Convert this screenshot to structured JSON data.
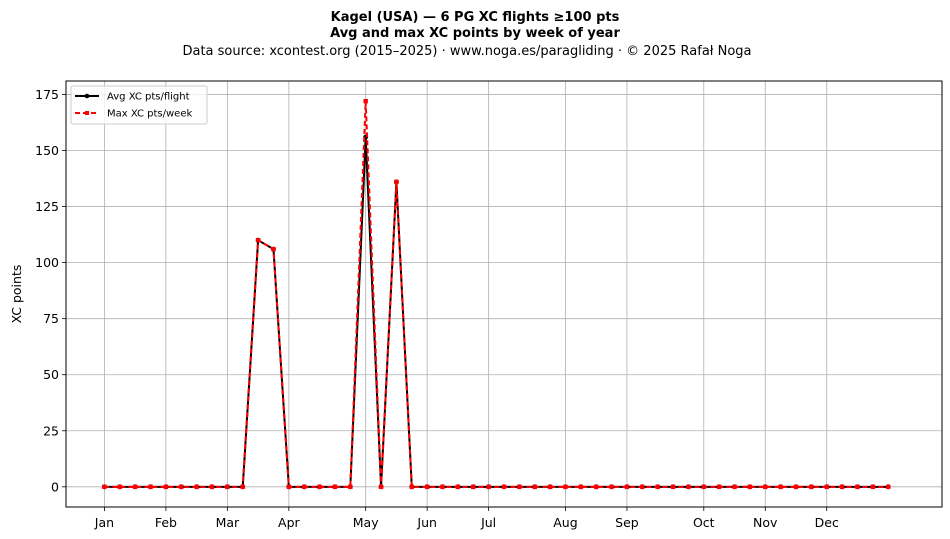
{
  "chart_data": {
    "type": "line",
    "title_line1": "Kagel (USA)  —  6 PG XC flights ≥100 pts",
    "title_line2": "Avg and max XC points by week of year",
    "subtitle": "Data source: xcontest.org (2015–2025)  ·  www.noga.es/paragliding  ·  © 2025 Rafał Noga",
    "ylabel": "XC points",
    "xlabel": "",
    "xlim": [
      -2.5,
      54.5
    ],
    "ylim": [
      -9,
      181
    ],
    "grid": true,
    "legend_position": "top-left",
    "x_ticks": [
      {
        "x": 0,
        "label": "Jan"
      },
      {
        "x": 4,
        "label": "Feb"
      },
      {
        "x": 8,
        "label": "Mar"
      },
      {
        "x": 12,
        "label": "Apr"
      },
      {
        "x": 17,
        "label": "May"
      },
      {
        "x": 21,
        "label": "Jun"
      },
      {
        "x": 25,
        "label": "Jul"
      },
      {
        "x": 30,
        "label": "Aug"
      },
      {
        "x": 34,
        "label": "Sep"
      },
      {
        "x": 39,
        "label": "Oct"
      },
      {
        "x": 43,
        "label": "Nov"
      },
      {
        "x": 47,
        "label": "Dec"
      }
    ],
    "y_ticks": [
      0,
      25,
      50,
      75,
      100,
      125,
      150,
      175
    ],
    "x": [
      0,
      1,
      2,
      3,
      4,
      5,
      6,
      7,
      8,
      9,
      10,
      11,
      12,
      13,
      14,
      15,
      16,
      17,
      18,
      19,
      20,
      21,
      22,
      23,
      24,
      25,
      26,
      27,
      28,
      29,
      30,
      31,
      32,
      33,
      34,
      35,
      36,
      37,
      38,
      39,
      40,
      41,
      42,
      43,
      44,
      45,
      46,
      47,
      48,
      49,
      50,
      51
    ],
    "series": [
      {
        "name": "Avg XC pts/flight",
        "color": "#000000",
        "style": "solid",
        "marker": "circle",
        "values": [
          0,
          0,
          0,
          0,
          0,
          0,
          0,
          0,
          0,
          0,
          110,
          106,
          0,
          0,
          0,
          0,
          0,
          156,
          0,
          136,
          0,
          0,
          0,
          0,
          0,
          0,
          0,
          0,
          0,
          0,
          0,
          0,
          0,
          0,
          0,
          0,
          0,
          0,
          0,
          0,
          0,
          0,
          0,
          0,
          0,
          0,
          0,
          0,
          0,
          0,
          0,
          0
        ]
      },
      {
        "name": "Max XC pts/week",
        "color": "#ff0000",
        "style": "dashed",
        "marker": "square",
        "values": [
          0,
          0,
          0,
          0,
          0,
          0,
          0,
          0,
          0,
          0,
          110,
          106,
          0,
          0,
          0,
          0,
          0,
          172,
          0,
          136,
          0,
          0,
          0,
          0,
          0,
          0,
          0,
          0,
          0,
          0,
          0,
          0,
          0,
          0,
          0,
          0,
          0,
          0,
          0,
          0,
          0,
          0,
          0,
          0,
          0,
          0,
          0,
          0,
          0,
          0,
          0,
          0
        ]
      }
    ]
  }
}
